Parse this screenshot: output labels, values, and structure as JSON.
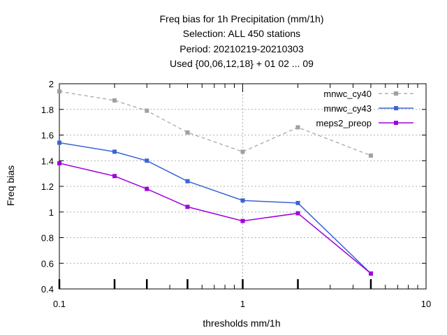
{
  "chart_data": {
    "type": "line",
    "title_lines": [
      "Freq bias  for 1h Precipitation (mm/1h)",
      "Selection: ALL    450 stations",
      "Period: 20210219-20210303",
      "Used {00,06,12,18} + 01 02 ... 09"
    ],
    "xlabel": "thresholds mm/1h",
    "ylabel": "Freq bias",
    "x_scale": "log",
    "xlim": [
      0.1,
      10
    ],
    "ylim": [
      0.4,
      2
    ],
    "x_ticks": [
      {
        "value": 0.1,
        "label": "0.1"
      },
      {
        "value": 1,
        "label": "1"
      },
      {
        "value": 10,
        "label": "10"
      }
    ],
    "y_ticks": [
      {
        "value": 0.4,
        "label": "0.4"
      },
      {
        "value": 0.6,
        "label": "0.6"
      },
      {
        "value": 0.8,
        "label": "0.8"
      },
      {
        "value": 1,
        "label": "1"
      },
      {
        "value": 1.2,
        "label": "1.2"
      },
      {
        "value": 1.4,
        "label": "1.4"
      },
      {
        "value": 1.6,
        "label": "1.6"
      },
      {
        "value": 1.8,
        "label": "1.8"
      },
      {
        "value": 2,
        "label": "2"
      }
    ],
    "grid": true,
    "legend_position": "top-right",
    "series": [
      {
        "name": "mnwc_cy40",
        "color": "#a0a0a0",
        "dashed": true,
        "x": [
          0.1,
          0.2,
          0.3,
          0.5,
          1,
          2,
          5
        ],
        "y": [
          1.94,
          1.87,
          1.79,
          1.62,
          1.47,
          1.66,
          1.44
        ]
      },
      {
        "name": "mnwc_cy43",
        "color": "#3a64d6",
        "dashed": false,
        "x": [
          0.1,
          0.2,
          0.3,
          0.5,
          1,
          2,
          5
        ],
        "y": [
          1.54,
          1.47,
          1.4,
          1.24,
          1.09,
          1.07,
          0.52
        ]
      },
      {
        "name": "meps2_preop",
        "color": "#a000e0",
        "dashed": false,
        "x": [
          0.1,
          0.2,
          0.3,
          0.5,
          1,
          2,
          5
        ],
        "y": [
          1.38,
          1.28,
          1.18,
          1.04,
          0.93,
          0.99,
          0.52
        ]
      }
    ]
  }
}
